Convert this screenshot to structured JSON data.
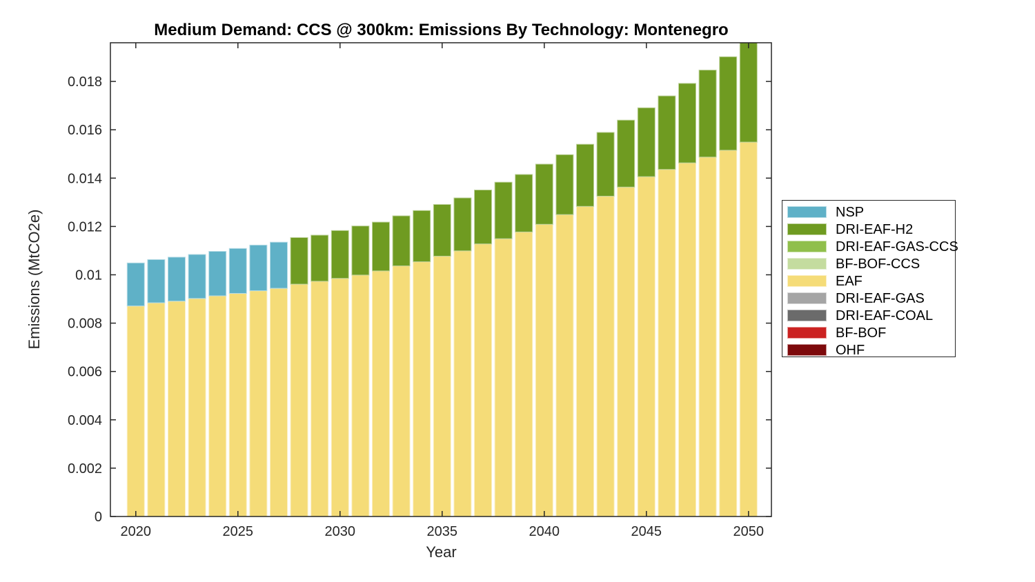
{
  "chart_data": {
    "type": "bar",
    "stacked": true,
    "title": "Medium Demand: CCS @ 300km: Emissions By Technology: Montenegro",
    "xlabel": "Year",
    "ylabel": "Emissions (MtCO2e)",
    "grid": false,
    "axis_color": "#262626",
    "text_color": "#262626",
    "background_color": "#ffffff",
    "x": [
      2020,
      2021,
      2022,
      2023,
      2024,
      2025,
      2026,
      2027,
      2028,
      2029,
      2030,
      2031,
      2032,
      2033,
      2034,
      2035,
      2036,
      2037,
      2038,
      2039,
      2040,
      2041,
      2042,
      2043,
      2044,
      2045,
      2046,
      2047,
      2048,
      2049,
      2050
    ],
    "series": [
      {
        "name": "EAF",
        "color": "#F5DC78",
        "values": [
          0.00871,
          0.00884,
          0.00891,
          0.00902,
          0.00913,
          0.00923,
          0.00934,
          0.00944,
          0.00961,
          0.00973,
          0.00985,
          0.00999,
          0.01016,
          0.01037,
          0.01054,
          0.01077,
          0.01099,
          0.01128,
          0.01149,
          0.01177,
          0.01209,
          0.01249,
          0.01283,
          0.01325,
          0.01363,
          0.01406,
          0.01436,
          0.01463,
          0.01487,
          0.01515,
          0.01549
        ]
      },
      {
        "name": "NSP",
        "color": "#5FB1C7",
        "values": [
          0.00178,
          0.00179,
          0.00182,
          0.00182,
          0.00184,
          0.00186,
          0.00189,
          0.00191,
          0,
          0,
          0,
          0,
          0,
          0,
          0,
          0,
          0,
          0,
          0,
          0,
          0,
          0,
          0,
          0,
          0,
          0,
          0,
          0,
          0,
          0,
          0
        ]
      },
      {
        "name": "DRI-EAF-H2",
        "color": "#6F9B21",
        "values": [
          0,
          0,
          0,
          0,
          0,
          0,
          0,
          0,
          0.00193,
          0.00191,
          0.00198,
          0.00203,
          0.00202,
          0.00207,
          0.00212,
          0.00214,
          0.00219,
          0.00223,
          0.00234,
          0.00238,
          0.00249,
          0.00248,
          0.00257,
          0.00264,
          0.00277,
          0.00285,
          0.00304,
          0.00329,
          0.0036,
          0.00387,
          0.00411
        ]
      }
    ],
    "xticks": [
      2020,
      2025,
      2030,
      2035,
      2040,
      2045,
      2050
    ],
    "yticks": [
      0,
      0.002,
      0.004,
      0.006,
      0.008,
      0.01,
      0.012,
      0.014,
      0.016,
      0.018
    ],
    "ytick_labels": [
      "0",
      "0.002",
      "0.004",
      "0.006",
      "0.008",
      "0.01",
      "0.012",
      "0.014",
      "0.016",
      "0.018"
    ],
    "ylim": [
      0,
      0.0196
    ],
    "legend": {
      "position": "right-outside",
      "entries": [
        {
          "label": "NSP",
          "color": "#5FB1C7"
        },
        {
          "label": "DRI-EAF-H2",
          "color": "#6F9B21"
        },
        {
          "label": "DRI-EAF-GAS-CCS",
          "color": "#90BF4B"
        },
        {
          "label": "BF-BOF-CCS",
          "color": "#C4DC9F"
        },
        {
          "label": "EAF",
          "color": "#F5DC78"
        },
        {
          "label": "DRI-EAF-GAS",
          "color": "#A5A5A5"
        },
        {
          "label": "DRI-EAF-COAL",
          "color": "#6B6B6B"
        },
        {
          "label": "BF-BOF",
          "color": "#CB2221"
        },
        {
          "label": "OHF",
          "color": "#7D0A0C"
        }
      ]
    }
  }
}
